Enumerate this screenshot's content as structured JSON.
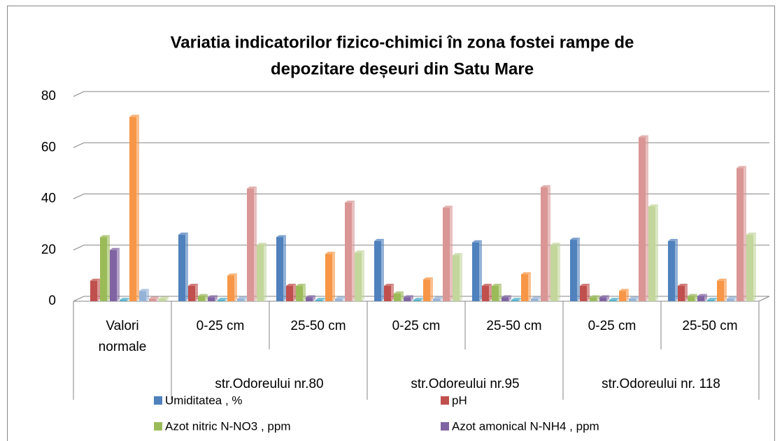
{
  "chart_data": {
    "type": "bar",
    "title": "Variatia indicatorilor fizico-chimici în zona fostei rampe de depozitare deșeuri din Satu Mare",
    "categories": [
      "Valori normale",
      "0-25 cm",
      "25-50 cm",
      "0-25 cm",
      "25-50 cm",
      "0-25 cm",
      "25-50 cm"
    ],
    "groups": [
      {
        "label": "str.Odoreului nr.80",
        "start": 1,
        "count": 2
      },
      {
        "label": "str.Odoreului nr.95",
        "start": 3,
        "count": 2
      },
      {
        "label": "str.Odoreului nr. 118",
        "start": 5,
        "count": 2
      }
    ],
    "series": [
      {
        "name": "Umiditatea , %",
        "color": "#4f81bd",
        "values": [
          null,
          26,
          25,
          23.5,
          23,
          24,
          23.5
        ]
      },
      {
        "name": "pH",
        "color": "#c0504d",
        "values": [
          8,
          6,
          6,
          6,
          6,
          6,
          6
        ]
      },
      {
        "name": "Azot nitric N-NO3 , ppm",
        "color": "#9bbb59",
        "values": [
          25,
          2,
          6,
          3,
          6,
          1.5,
          2
        ]
      },
      {
        "name": "Azot amonical N-NH4 , ppm",
        "color": "#8064a2",
        "values": [
          20,
          1.5,
          1.5,
          1.5,
          1.5,
          1.5,
          2
        ]
      },
      {
        "color": "#4bacc6",
        "values": [
          0.5,
          0.5,
          0.5,
          0.5,
          0.5,
          0.5,
          0.5
        ]
      },
      {
        "color": "#f79646",
        "values": [
          72,
          10,
          18.5,
          8.5,
          10.5,
          4,
          8
        ]
      },
      {
        "color": "#95b3d7",
        "values": [
          4,
          1,
          1,
          1,
          1,
          1,
          1
        ]
      },
      {
        "color": "#d99694",
        "values": [
          1,
          44,
          38.5,
          36.5,
          44.5,
          64,
          52
        ]
      },
      {
        "color": "#c3d69b",
        "values": [
          1,
          22,
          19,
          18,
          22,
          37,
          26
        ]
      }
    ],
    "ylim": [
      0,
      80
    ],
    "yticks": [
      0,
      20,
      40,
      60,
      80
    ],
    "grid": true
  }
}
